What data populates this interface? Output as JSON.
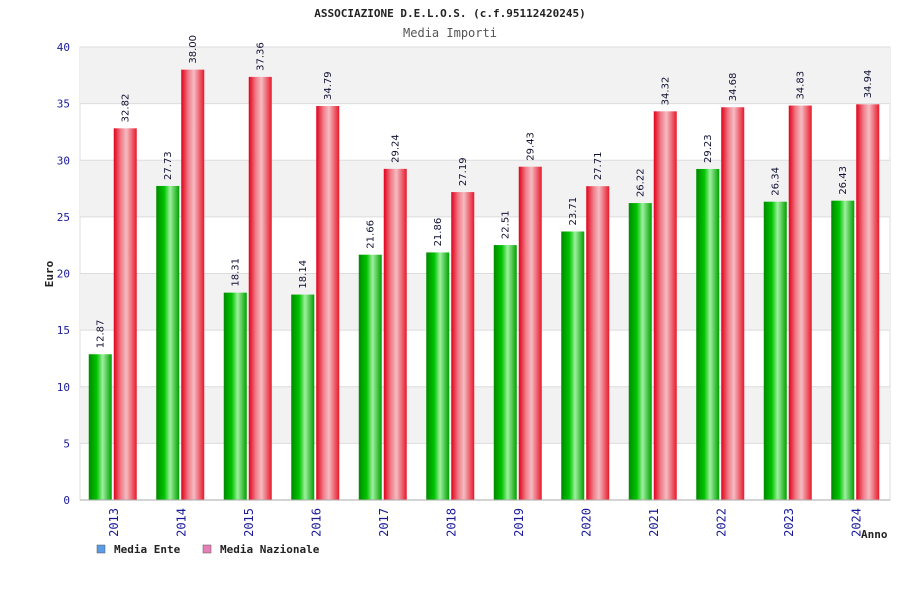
{
  "colors": {
    "ente": "#00a000",
    "nazionale": "#e8182a",
    "legend_ente": "#5b9ce6",
    "legend_nazionale": "#e880b8",
    "band": "#f2f2f2",
    "grid": "#dcdcdc"
  },
  "chart_data": {
    "type": "bar",
    "title": "ASSOCIAZIONE D.E.L.O.S. (c.f.95112420245)",
    "subtitle": "Media Importi",
    "xlabel": "Anno",
    "ylabel": "Euro",
    "ylim": [
      0,
      40
    ],
    "yticks": [
      "0",
      "5",
      "10",
      "15",
      "20",
      "25",
      "30",
      "35",
      "40"
    ],
    "categories": [
      "2013",
      "2014",
      "2015",
      "2016",
      "2017",
      "2018",
      "2019",
      "2020",
      "2021",
      "2022",
      "2023",
      "2024"
    ],
    "series": [
      {
        "name": "Media Ente",
        "values": [
          12.87,
          27.73,
          18.31,
          18.14,
          21.66,
          21.86,
          22.51,
          23.71,
          26.22,
          29.23,
          26.34,
          26.43
        ],
        "labels": [
          "12.87",
          "27.73",
          "18.31",
          "18.14",
          "21.66",
          "21.86",
          "22.51",
          "23.71",
          "26.22",
          "29.23",
          "26.34",
          "26.43"
        ]
      },
      {
        "name": "Media Nazionale",
        "values": [
          32.82,
          38.0,
          37.36,
          34.79,
          29.24,
          27.19,
          29.43,
          27.71,
          34.32,
          34.68,
          34.83,
          34.94
        ],
        "labels": [
          "32.82",
          "38.00",
          "37.36",
          "34.79",
          "29.24",
          "27.19",
          "29.43",
          "27.71",
          "34.32",
          "34.68",
          "34.83",
          "34.94"
        ]
      }
    ],
    "legend": "bottom-left",
    "grid": true
  }
}
